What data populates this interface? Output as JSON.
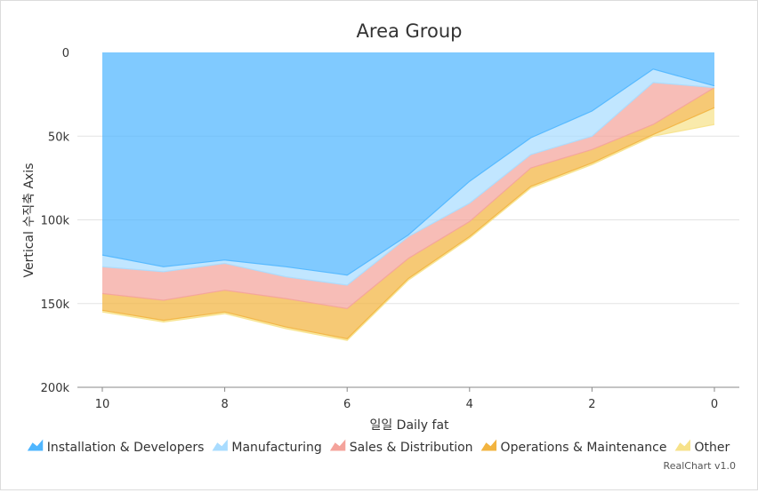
{
  "chart_data": {
    "type": "area",
    "title": "Area Group",
    "xlabel": "일일 Daily fat",
    "ylabel": "Vertical 수직축 Axis",
    "x": [
      10,
      9,
      8,
      7,
      6,
      5,
      4,
      3,
      2,
      1,
      0
    ],
    "x_ticks": [
      "10",
      "8",
      "6",
      "4",
      "2",
      "0"
    ],
    "x_reversed": true,
    "y_ticks": [
      "0",
      "50k",
      "100k",
      "150k",
      "200k"
    ],
    "ylim": [
      0,
      200000
    ],
    "y_reversed": true,
    "stacked": true,
    "grid": true,
    "legend_position": "bottom",
    "series": [
      {
        "name": "Installation & Developers",
        "color": "#4fb6ff",
        "values": [
          121000,
          128000,
          124000,
          128000,
          133000,
          109000,
          77000,
          51000,
          35000,
          10000,
          20000
        ]
      },
      {
        "name": "Manufacturing",
        "color": "#a9dcff",
        "values": [
          7000,
          3000,
          2000,
          6000,
          6000,
          1000,
          13000,
          10000,
          15000,
          8000,
          1000
        ]
      },
      {
        "name": "Sales & Distribution",
        "color": "#f4a39b",
        "values": [
          16000,
          17000,
          16000,
          13000,
          14000,
          13000,
          11000,
          8000,
          8000,
          25000,
          0
        ]
      },
      {
        "name": "Operations & Maintenance",
        "color": "#f2b440",
        "values": [
          10000,
          12000,
          13000,
          17000,
          18000,
          12000,
          9000,
          11000,
          8000,
          6000,
          12000
        ]
      },
      {
        "name": "Other",
        "color": "#f7e28a",
        "values": [
          1000,
          1000,
          1000,
          1000,
          1000,
          1000,
          1000,
          1000,
          1000,
          1000,
          10000
        ]
      }
    ]
  },
  "credit": "RealChart v1.0"
}
